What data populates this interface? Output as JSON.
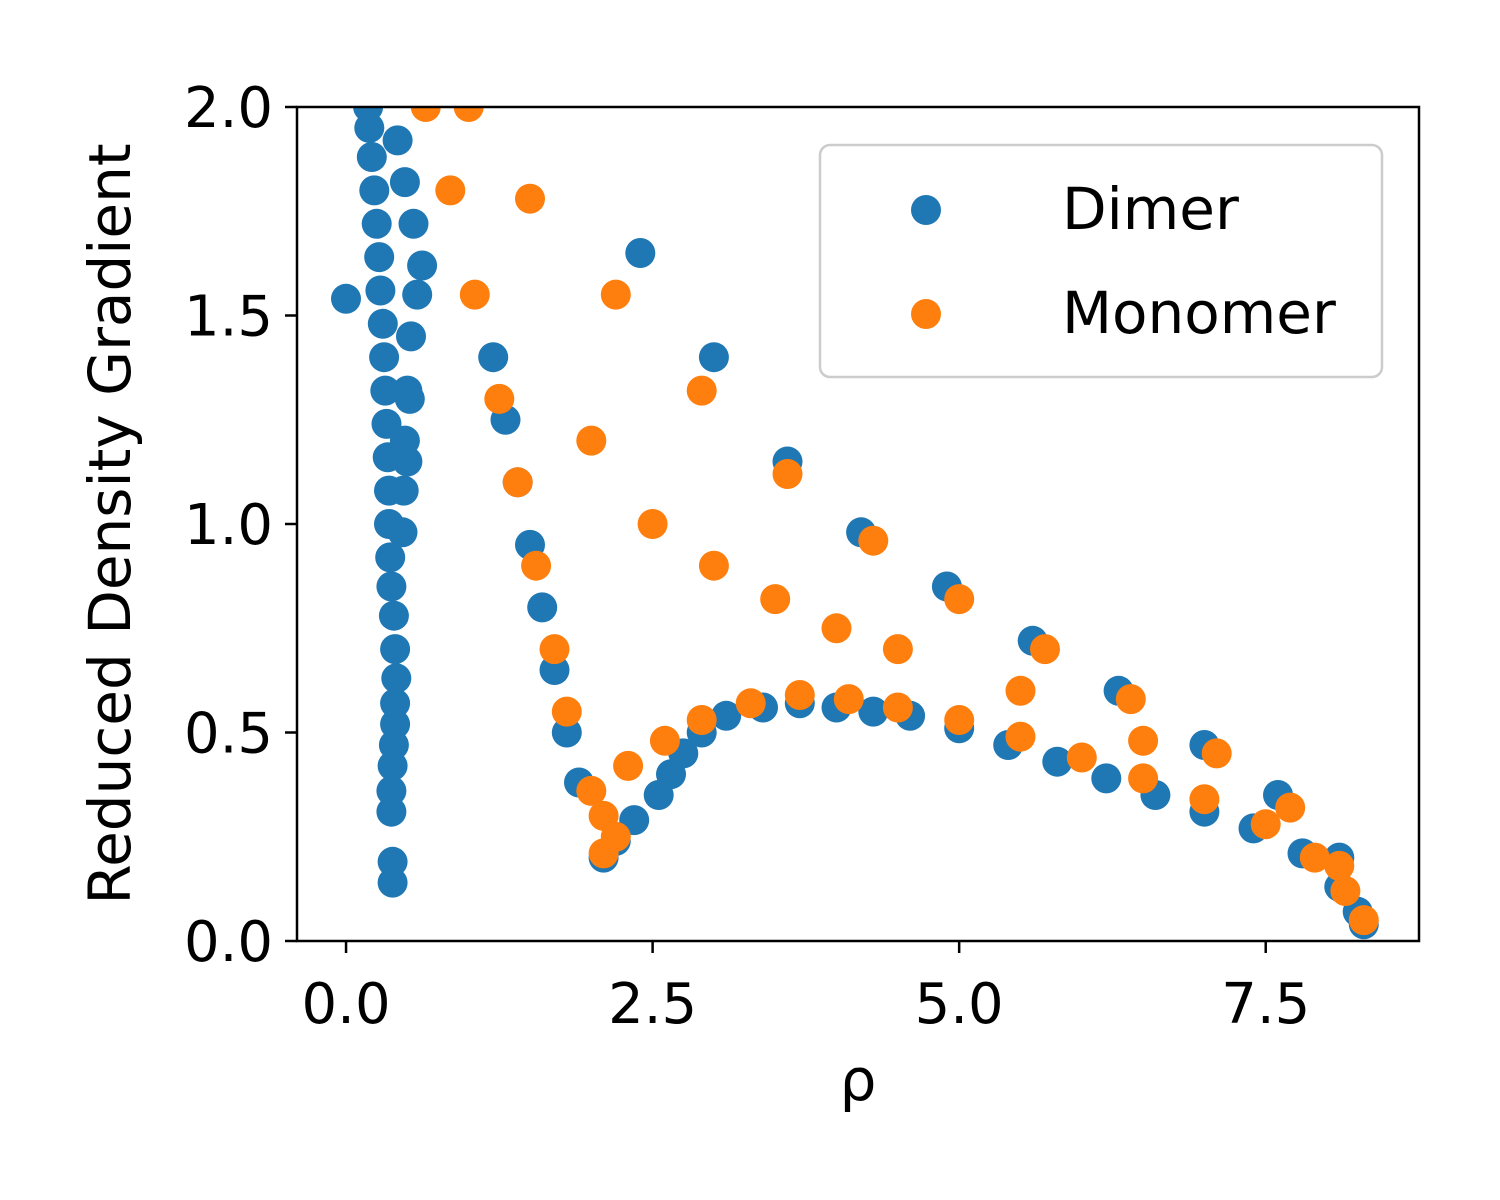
{
  "chart_data": {
    "type": "scatter",
    "title": "",
    "xlabel": "ρ",
    "ylabel": "Reduced Density Gradient",
    "xlim": [
      -0.4,
      8.75
    ],
    "ylim": [
      0.0,
      2.0
    ],
    "xticks": [
      "0.0",
      "2.5",
      "5.0",
      "7.5"
    ],
    "yticks": [
      "0.0",
      "0.5",
      "1.0",
      "1.5",
      "2.0"
    ],
    "grid": false,
    "legend_position": "top-right",
    "series": [
      {
        "name": "Dimer",
        "color": "#1f77b4",
        "points": [
          [
            0.0,
            1.54
          ],
          [
            0.38,
            0.14
          ],
          [
            0.38,
            0.19
          ],
          [
            0.37,
            0.31
          ],
          [
            0.37,
            0.36
          ],
          [
            0.38,
            0.42
          ],
          [
            0.39,
            0.47
          ],
          [
            0.4,
            0.52
          ],
          [
            0.4,
            0.57
          ],
          [
            0.41,
            0.63
          ],
          [
            0.4,
            0.7
          ],
          [
            0.39,
            0.78
          ],
          [
            0.37,
            0.85
          ],
          [
            0.36,
            0.92
          ],
          [
            0.35,
            1.0
          ],
          [
            0.35,
            1.08
          ],
          [
            0.34,
            1.16
          ],
          [
            0.33,
            1.24
          ],
          [
            0.32,
            1.32
          ],
          [
            0.31,
            1.4
          ],
          [
            0.3,
            1.48
          ],
          [
            0.28,
            1.56
          ],
          [
            0.27,
            1.64
          ],
          [
            0.25,
            1.72
          ],
          [
            0.23,
            1.8
          ],
          [
            0.21,
            1.88
          ],
          [
            0.19,
            1.95
          ],
          [
            0.18,
            2.0
          ],
          [
            0.46,
            0.98
          ],
          [
            0.47,
            1.08
          ],
          [
            0.48,
            1.2
          ],
          [
            0.5,
            1.32
          ],
          [
            0.53,
            1.45
          ],
          [
            0.58,
            1.55
          ],
          [
            0.62,
            1.62
          ],
          [
            0.55,
            1.72
          ],
          [
            0.48,
            1.82
          ],
          [
            0.42,
            1.92
          ],
          [
            0.52,
            1.3
          ],
          [
            0.5,
            1.15
          ],
          [
            2.1,
            0.2
          ],
          [
            2.2,
            0.24
          ],
          [
            2.35,
            0.29
          ],
          [
            2.55,
            0.35
          ],
          [
            2.65,
            0.4
          ],
          [
            2.75,
            0.45
          ],
          [
            2.9,
            0.5
          ],
          [
            3.1,
            0.54
          ],
          [
            3.4,
            0.56
          ],
          [
            3.7,
            0.57
          ],
          [
            4.0,
            0.56
          ],
          [
            4.3,
            0.55
          ],
          [
            4.6,
            0.54
          ],
          [
            5.0,
            0.51
          ],
          [
            5.4,
            0.47
          ],
          [
            5.8,
            0.43
          ],
          [
            6.2,
            0.39
          ],
          [
            6.6,
            0.35
          ],
          [
            7.0,
            0.31
          ],
          [
            7.4,
            0.27
          ],
          [
            7.8,
            0.21
          ],
          [
            8.1,
            0.13
          ],
          [
            8.25,
            0.07
          ],
          [
            8.3,
            0.04
          ],
          [
            1.9,
            0.38
          ],
          [
            1.8,
            0.5
          ],
          [
            1.7,
            0.65
          ],
          [
            1.6,
            0.8
          ],
          [
            1.5,
            0.95
          ],
          [
            1.4,
            1.1
          ],
          [
            1.3,
            1.25
          ],
          [
            1.2,
            1.4
          ],
          [
            2.4,
            1.65
          ],
          [
            3.0,
            1.4
          ],
          [
            3.6,
            1.15
          ],
          [
            4.2,
            0.98
          ],
          [
            4.9,
            0.85
          ],
          [
            5.6,
            0.72
          ],
          [
            6.3,
            0.6
          ],
          [
            7.0,
            0.47
          ],
          [
            7.6,
            0.35
          ],
          [
            8.1,
            0.2
          ]
        ]
      },
      {
        "name": "Monomer",
        "color": "#ff7f0e",
        "points": [
          [
            2.1,
            0.21
          ],
          [
            2.2,
            0.25
          ],
          [
            2.1,
            0.3
          ],
          [
            2.0,
            0.36
          ],
          [
            2.3,
            0.42
          ],
          [
            2.6,
            0.48
          ],
          [
            2.9,
            0.53
          ],
          [
            3.3,
            0.57
          ],
          [
            3.7,
            0.59
          ],
          [
            4.1,
            0.58
          ],
          [
            4.5,
            0.56
          ],
          [
            5.0,
            0.53
          ],
          [
            5.5,
            0.49
          ],
          [
            6.0,
            0.44
          ],
          [
            6.5,
            0.39
          ],
          [
            7.0,
            0.34
          ],
          [
            7.5,
            0.28
          ],
          [
            7.9,
            0.2
          ],
          [
            8.15,
            0.12
          ],
          [
            8.3,
            0.05
          ],
          [
            1.8,
            0.55
          ],
          [
            1.7,
            0.7
          ],
          [
            1.55,
            0.9
          ],
          [
            1.4,
            1.1
          ],
          [
            1.25,
            1.3
          ],
          [
            1.05,
            1.55
          ],
          [
            0.85,
            1.8
          ],
          [
            0.65,
            2.0
          ],
          [
            1.0,
            2.0
          ],
          [
            1.5,
            1.78
          ],
          [
            2.2,
            1.55
          ],
          [
            2.9,
            1.32
          ],
          [
            3.6,
            1.12
          ],
          [
            4.3,
            0.96
          ],
          [
            5.0,
            0.82
          ],
          [
            5.7,
            0.7
          ],
          [
            6.4,
            0.58
          ],
          [
            7.1,
            0.45
          ],
          [
            7.7,
            0.32
          ],
          [
            8.1,
            0.18
          ],
          [
            2.5,
            1.0
          ],
          [
            3.0,
            0.9
          ],
          [
            3.5,
            0.82
          ],
          [
            4.0,
            0.75
          ],
          [
            4.5,
            0.7
          ],
          [
            5.5,
            0.6
          ],
          [
            6.5,
            0.48
          ],
          [
            2.0,
            1.2
          ]
        ]
      }
    ]
  }
}
